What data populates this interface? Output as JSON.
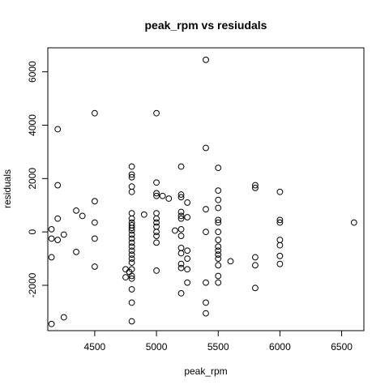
{
  "chart_data": {
    "type": "scatter",
    "title": "peak_rpm  vs resiudals",
    "xlabel": "peak_rpm",
    "ylabel": "residuals",
    "xlim": [
      4120,
      6680
    ],
    "ylim": [
      -3700,
      6900
    ],
    "xticks": [
      4500,
      5000,
      5500,
      6000,
      6500
    ],
    "yticks": [
      -2000,
      0,
      2000,
      4000,
      6000
    ],
    "xtick_labels": [
      "4500",
      "5000",
      "5500",
      "6000",
      "6500"
    ],
    "ytick_labels": [
      "-2000",
      "0",
      "2000",
      "4000",
      "6000"
    ],
    "grid": false,
    "legend": "none",
    "point_color": "#000000",
    "points": [
      {
        "x": 4150,
        "y": 100
      },
      {
        "x": 4150,
        "y": -250
      },
      {
        "x": 4150,
        "y": -950
      },
      {
        "x": 4150,
        "y": -3450
      },
      {
        "x": 4200,
        "y": 3850
      },
      {
        "x": 4200,
        "y": 1750
      },
      {
        "x": 4200,
        "y": 500
      },
      {
        "x": 4200,
        "y": -300
      },
      {
        "x": 4250,
        "y": -100
      },
      {
        "x": 4250,
        "y": -3200
      },
      {
        "x": 4350,
        "y": 800
      },
      {
        "x": 4350,
        "y": -750
      },
      {
        "x": 4400,
        "y": 600
      },
      {
        "x": 4500,
        "y": 4450
      },
      {
        "x": 4500,
        "y": 1150
      },
      {
        "x": 4500,
        "y": 350
      },
      {
        "x": 4500,
        "y": -250
      },
      {
        "x": 4500,
        "y": -1300
      },
      {
        "x": 4750,
        "y": -1400
      },
      {
        "x": 4750,
        "y": -1700
      },
      {
        "x": 4780,
        "y": -1500
      },
      {
        "x": 4800,
        "y": 2450
      },
      {
        "x": 4800,
        "y": 2150
      },
      {
        "x": 4800,
        "y": 2050
      },
      {
        "x": 4800,
        "y": 1700
      },
      {
        "x": 4800,
        "y": 1500
      },
      {
        "x": 4800,
        "y": 700
      },
      {
        "x": 4800,
        "y": 500
      },
      {
        "x": 4800,
        "y": 350
      },
      {
        "x": 4800,
        "y": 250
      },
      {
        "x": 4800,
        "y": 150
      },
      {
        "x": 4800,
        "y": 50
      },
      {
        "x": 4800,
        "y": -100
      },
      {
        "x": 4800,
        "y": -250
      },
      {
        "x": 4800,
        "y": -400
      },
      {
        "x": 4800,
        "y": -550
      },
      {
        "x": 4800,
        "y": -700
      },
      {
        "x": 4800,
        "y": -850
      },
      {
        "x": 4800,
        "y": -1000
      },
      {
        "x": 4800,
        "y": -1150
      },
      {
        "x": 4800,
        "y": -1400
      },
      {
        "x": 4800,
        "y": -1650
      },
      {
        "x": 4800,
        "y": -1750
      },
      {
        "x": 4800,
        "y": -2150
      },
      {
        "x": 4800,
        "y": -2650
      },
      {
        "x": 4800,
        "y": -3350
      },
      {
        "x": 4900,
        "y": 650
      },
      {
        "x": 5000,
        "y": 4450
      },
      {
        "x": 5000,
        "y": 1850
      },
      {
        "x": 5000,
        "y": 1450
      },
      {
        "x": 5000,
        "y": 1350
      },
      {
        "x": 5000,
        "y": 700
      },
      {
        "x": 5000,
        "y": 500
      },
      {
        "x": 5000,
        "y": 350
      },
      {
        "x": 5000,
        "y": 200
      },
      {
        "x": 5000,
        "y": 0
      },
      {
        "x": 5000,
        "y": -150
      },
      {
        "x": 5000,
        "y": -400
      },
      {
        "x": 5000,
        "y": -1450
      },
      {
        "x": 5050,
        "y": 1350
      },
      {
        "x": 5100,
        "y": 1250
      },
      {
        "x": 5150,
        "y": 50
      },
      {
        "x": 5200,
        "y": 2450
      },
      {
        "x": 5200,
        "y": 1400
      },
      {
        "x": 5200,
        "y": 1300
      },
      {
        "x": 5200,
        "y": 750
      },
      {
        "x": 5200,
        "y": 600
      },
      {
        "x": 5200,
        "y": 500
      },
      {
        "x": 5200,
        "y": 100
      },
      {
        "x": 5200,
        "y": -150
      },
      {
        "x": 5200,
        "y": -600
      },
      {
        "x": 5200,
        "y": -800
      },
      {
        "x": 5200,
        "y": -1200
      },
      {
        "x": 5200,
        "y": -1350
      },
      {
        "x": 5200,
        "y": -2300
      },
      {
        "x": 5250,
        "y": 1100
      },
      {
        "x": 5250,
        "y": 550
      },
      {
        "x": 5250,
        "y": -700
      },
      {
        "x": 5250,
        "y": -1000
      },
      {
        "x": 5250,
        "y": -1400
      },
      {
        "x": 5250,
        "y": -1900
      },
      {
        "x": 5400,
        "y": 6450
      },
      {
        "x": 5400,
        "y": 3150
      },
      {
        "x": 5400,
        "y": 850
      },
      {
        "x": 5400,
        "y": 0
      },
      {
        "x": 5400,
        "y": -1900
      },
      {
        "x": 5400,
        "y": -2650
      },
      {
        "x": 5400,
        "y": -3050
      },
      {
        "x": 5500,
        "y": 2400
      },
      {
        "x": 5500,
        "y": 1550
      },
      {
        "x": 5500,
        "y": 1200
      },
      {
        "x": 5500,
        "y": 900
      },
      {
        "x": 5500,
        "y": 450
      },
      {
        "x": 5500,
        "y": 350
      },
      {
        "x": 5500,
        "y": 0
      },
      {
        "x": 5500,
        "y": -300
      },
      {
        "x": 5500,
        "y": -550
      },
      {
        "x": 5500,
        "y": -700
      },
      {
        "x": 5500,
        "y": -850
      },
      {
        "x": 5500,
        "y": -1000
      },
      {
        "x": 5500,
        "y": -1250
      },
      {
        "x": 5500,
        "y": -1650
      },
      {
        "x": 5500,
        "y": -1900
      },
      {
        "x": 5600,
        "y": -1100
      },
      {
        "x": 5800,
        "y": 1750
      },
      {
        "x": 5800,
        "y": 1650
      },
      {
        "x": 5800,
        "y": -950
      },
      {
        "x": 5800,
        "y": -1250
      },
      {
        "x": 5800,
        "y": -2100
      },
      {
        "x": 6000,
        "y": 1500
      },
      {
        "x": 6000,
        "y": 450
      },
      {
        "x": 6000,
        "y": 350
      },
      {
        "x": 6000,
        "y": -300
      },
      {
        "x": 6000,
        "y": -500
      },
      {
        "x": 6000,
        "y": -900
      },
      {
        "x": 6000,
        "y": -1200
      },
      {
        "x": 6600,
        "y": 350
      }
    ]
  }
}
